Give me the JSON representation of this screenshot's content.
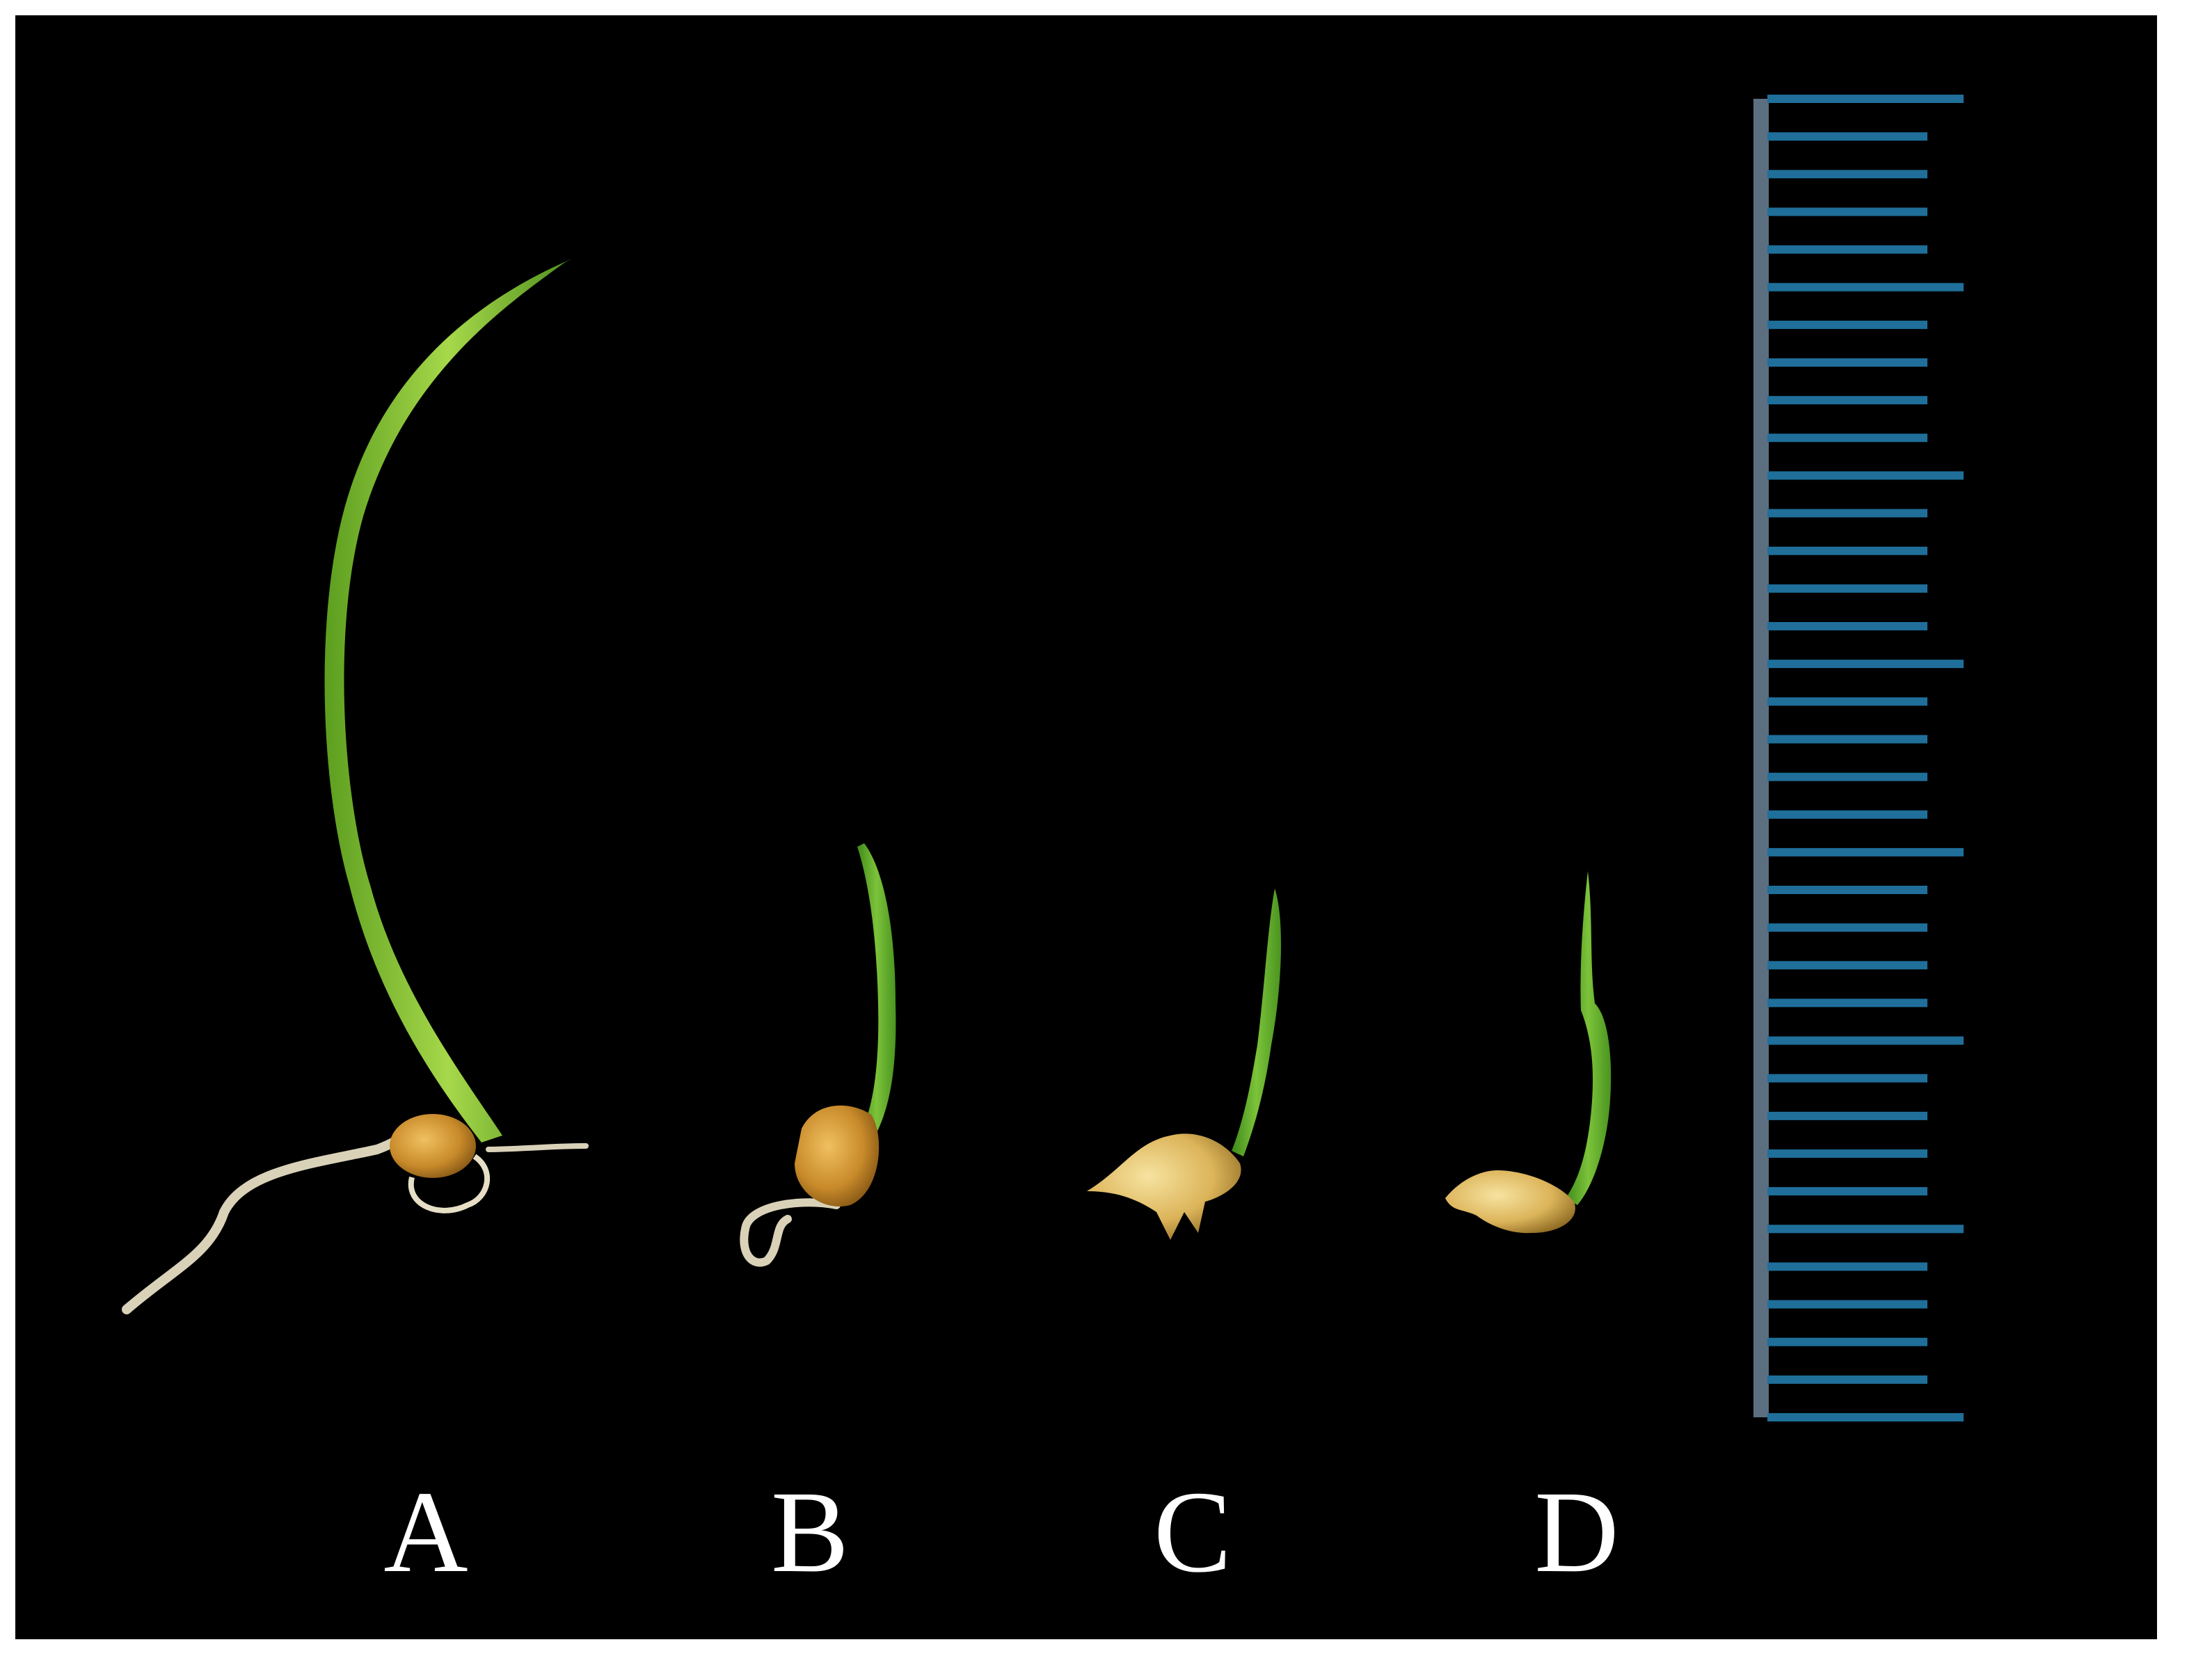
{
  "labels": {
    "a": "A",
    "b": "B",
    "c": "C",
    "d": "D"
  },
  "colors": {
    "background": "#000000",
    "frame": "#ffffff",
    "leaf": "#8cc63f",
    "leaf_dark": "#4f8f1e",
    "seed": "#c88a2a",
    "root": "#d9d2b8",
    "ruler_tick": "#1f6f9a"
  },
  "scale": {
    "icon": "ruler-scale",
    "major_every": 5,
    "tick_count": 36
  }
}
